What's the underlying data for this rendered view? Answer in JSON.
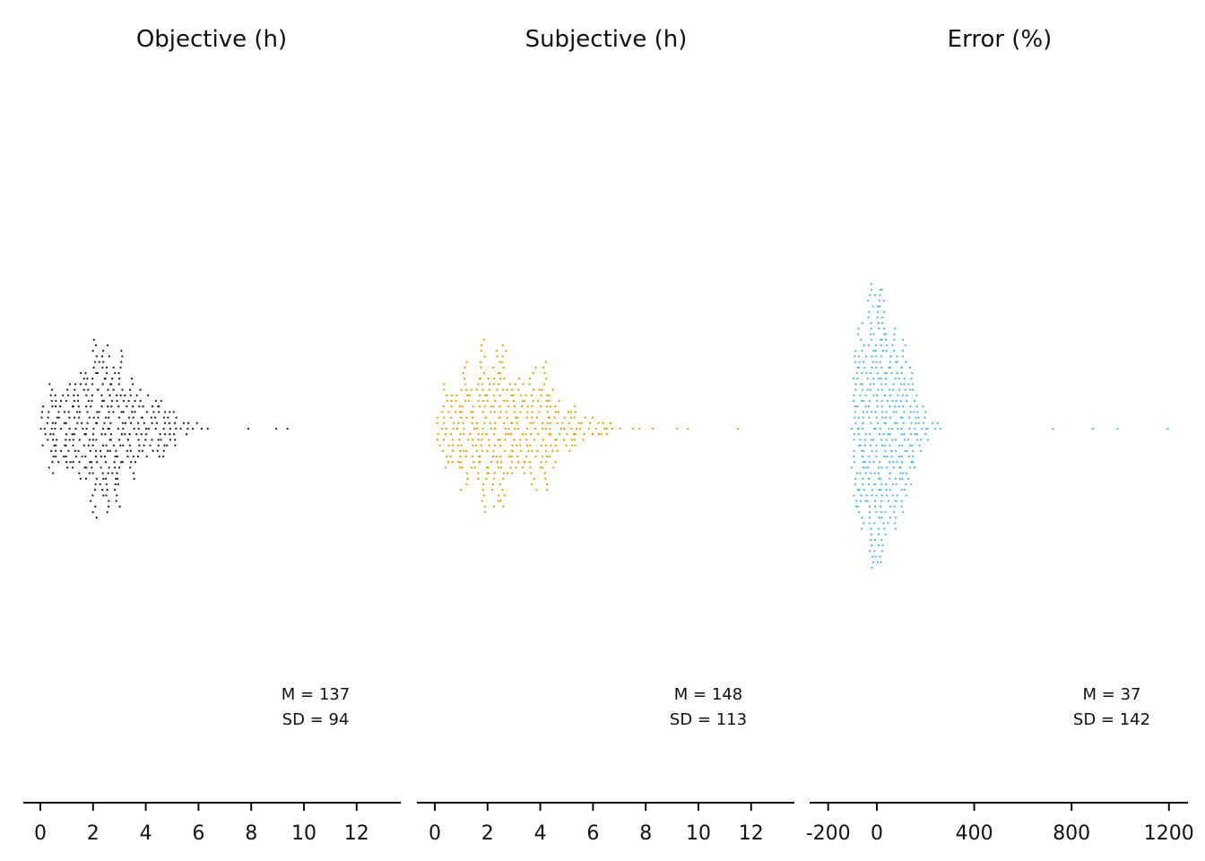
{
  "chart_data": [
    {
      "type": "scatter",
      "subtype": "beeswarm",
      "title": "Objective (h)",
      "xlim": [
        -0.5,
        13.5
      ],
      "xticks": [
        0,
        2,
        4,
        6,
        8,
        10,
        12
      ],
      "xtick_labels": [
        "0",
        "2",
        "4",
        "6",
        "8",
        "10",
        "12"
      ],
      "point_color": "#222222",
      "stats": {
        "mean_label": "M = 137",
        "sd_label": "SD = 94"
      },
      "distribution": {
        "count": 380,
        "center": 2.3,
        "spread": 1.55,
        "min": 0.0,
        "max": 9.4,
        "outliers": [
          7.9,
          9.0,
          9.4
        ]
      }
    },
    {
      "type": "scatter",
      "subtype": "beeswarm",
      "title": "Subjective (h)",
      "xlim": [
        -0.5,
        13.5
      ],
      "xticks": [
        0,
        2,
        4,
        6,
        8,
        10,
        12
      ],
      "xtick_labels": [
        "0",
        "2",
        "4",
        "6",
        "8",
        "10",
        "12"
      ],
      "point_color": "#E69F00",
      "stats": {
        "mean_label": "M = 148",
        "sd_label": "SD = 113"
      },
      "distribution": {
        "count": 420,
        "center": 2.5,
        "spread": 1.9,
        "min": 0.0,
        "max": 11.5,
        "outliers": [
          9.2,
          9.6,
          11.5
        ]
      }
    },
    {
      "type": "scatter",
      "subtype": "beeswarm",
      "title": "Error (%)",
      "xlim": [
        -260,
        1240
      ],
      "xticks": [
        -200,
        0,
        400,
        800,
        1200
      ],
      "xtick_labels": [
        "-200",
        "0",
        "400",
        "800",
        "1200"
      ],
      "point_color": "#56B4E9",
      "stats": {
        "mean_label": "M = 37",
        "sd_label": "SD = 142"
      },
      "distribution": {
        "count": 440,
        "center": 10,
        "spread": 95,
        "min": -100,
        "max": 1190,
        "outliers": [
          720,
          890,
          990,
          1190
        ]
      }
    }
  ]
}
